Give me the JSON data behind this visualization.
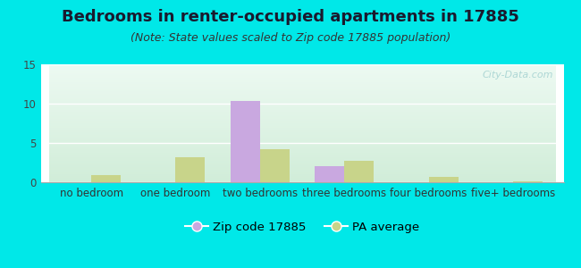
{
  "title": "Bedrooms in renter-occupied apartments in 17885",
  "subtitle": "(Note: State values scaled to Zip code 17885 population)",
  "categories": [
    "no bedroom",
    "one bedroom",
    "two bedrooms",
    "three bedrooms",
    "four bedrooms",
    "five+ bedrooms"
  ],
  "zip_values": [
    0,
    0,
    10.3,
    2.0,
    0,
    0
  ],
  "pa_values": [
    0.9,
    3.2,
    4.2,
    2.7,
    0.7,
    0.15
  ],
  "zip_color": "#c9a8e0",
  "pa_color": "#c8d48a",
  "bg_outer": "#00e8e8",
  "ylim": [
    0,
    15
  ],
  "yticks": [
    0,
    5,
    10,
    15
  ],
  "bar_width": 0.35,
  "title_fontsize": 13,
  "subtitle_fontsize": 9,
  "tick_fontsize": 8.5,
  "legend_fontsize": 9.5,
  "watermark_text": "City-Data.com"
}
